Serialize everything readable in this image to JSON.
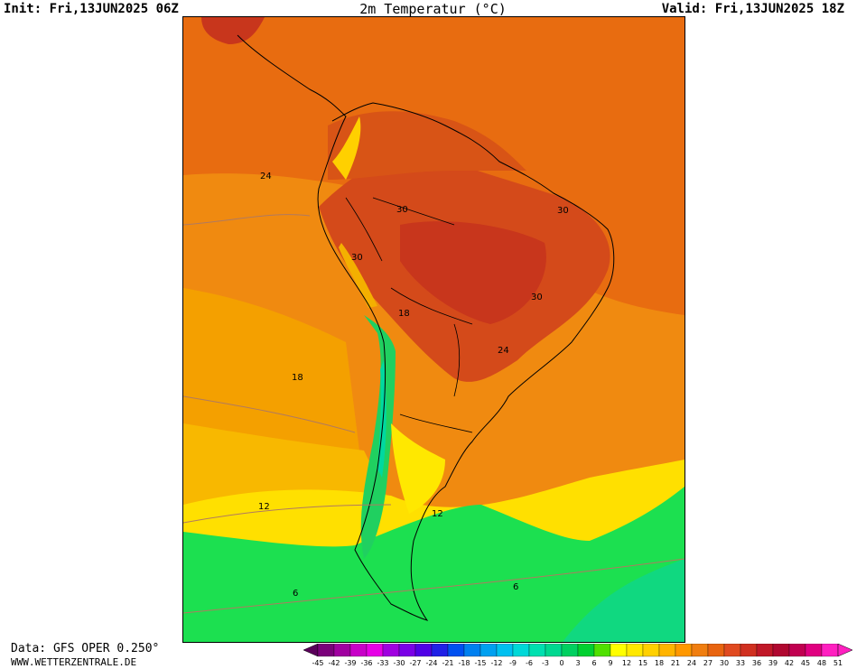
{
  "header": {
    "init": "Init: Fri,13JUN2025 06Z",
    "title": "2m Temperatur (°C)",
    "valid": "Valid: Fri,13JUN2025 18Z"
  },
  "footer": {
    "data_source": "Data: GFS OPER 0.250°",
    "website": "WWW.WETTERZENTRALE.DE"
  },
  "map": {
    "region": "South America",
    "contour_labels": [
      "24",
      "30",
      "30",
      "30",
      "30",
      "18",
      "24",
      "18",
      "12",
      "12",
      "6",
      "6"
    ]
  },
  "legend": {
    "ticks": [
      "-45",
      "-42",
      "-39",
      "-36",
      "-33",
      "-30",
      "-27",
      "-24",
      "-21",
      "-18",
      "-15",
      "-12",
      "-9",
      "-6",
      "-3",
      "0",
      "3",
      "6",
      "9",
      "12",
      "15",
      "18",
      "21",
      "24",
      "27",
      "30",
      "33",
      "36",
      "39",
      "42",
      "45",
      "48",
      "51"
    ],
    "colors": [
      "#5a005a",
      "#7a007a",
      "#a000a0",
      "#c800c8",
      "#e600e6",
      "#a000e0",
      "#7a00e6",
      "#5000e6",
      "#2020e6",
      "#0050f0",
      "#0080f0",
      "#00a0f0",
      "#00c0f0",
      "#00d8d8",
      "#00e0b0",
      "#00d890",
      "#00d060",
      "#00d030",
      "#50e000",
      "#ffff00",
      "#ffe800",
      "#ffd000",
      "#ffb400",
      "#ff9800",
      "#f07e10",
      "#e86410",
      "#e04a20",
      "#d03020",
      "#c01828",
      "#b00830",
      "#c00050",
      "#e00080",
      "#ff20c0"
    ]
  }
}
